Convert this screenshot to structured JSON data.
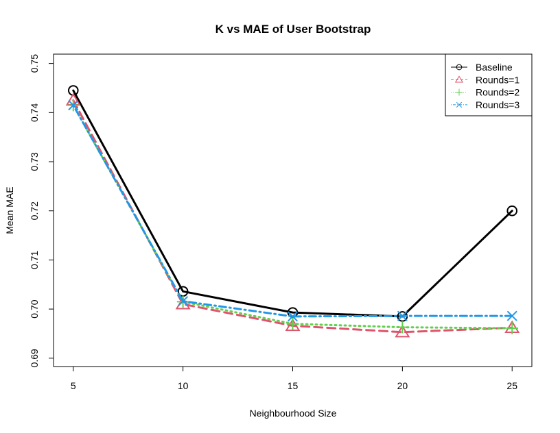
{
  "chart_data": {
    "type": "line",
    "title": "K vs MAE of User Bootstrap",
    "xlabel": "Neighbourhood Size",
    "ylabel": "Mean MAE",
    "x": [
      5,
      10,
      15,
      20,
      25
    ],
    "x_ticks": [
      "5",
      "10",
      "15",
      "20",
      "25"
    ],
    "y_ticks": [
      "0.69",
      "0.70",
      "0.71",
      "0.72",
      "0.73",
      "0.74",
      "0.75"
    ],
    "xlim": [
      4.1,
      25.9
    ],
    "ylim": [
      0.6883,
      0.7519
    ],
    "grid": false,
    "legend_position": "top-right",
    "series": [
      {
        "name": "Baseline",
        "values": [
          0.7445,
          0.7036,
          0.6993,
          0.6985,
          0.72
        ],
        "color": "#000000",
        "marker": "circle",
        "line_style": "solid"
      },
      {
        "name": "Rounds=1",
        "values": [
          0.7425,
          0.701,
          0.6966,
          0.6953,
          0.6962
        ],
        "color": "#DF536B",
        "marker": "triangle",
        "line_style": "dashed"
      },
      {
        "name": "Rounds=2",
        "values": [
          0.7415,
          0.7015,
          0.697,
          0.6963,
          0.6961
        ],
        "color": "#61D04F",
        "marker": "plus",
        "line_style": "dotted"
      },
      {
        "name": "Rounds=3",
        "values": [
          0.7415,
          0.7016,
          0.6985,
          0.6986,
          0.6986
        ],
        "color": "#2297E6",
        "marker": "cross",
        "line_style": "dotdash"
      }
    ]
  }
}
